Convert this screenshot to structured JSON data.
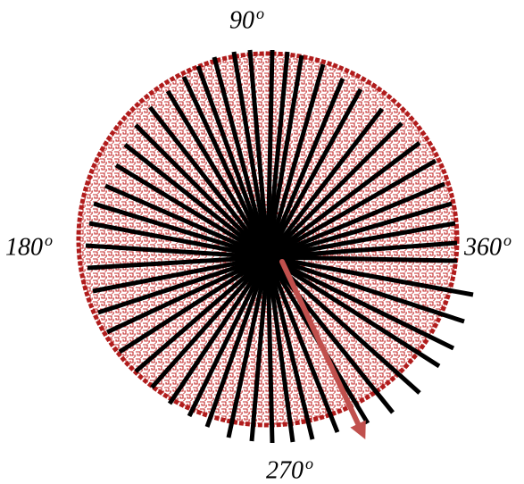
{
  "labels": {
    "top": {
      "value": "90",
      "degree": "o"
    },
    "left": {
      "value": "180",
      "degree": "o"
    },
    "right": {
      "value": "360",
      "degree": "o"
    },
    "bottom": {
      "value": "270",
      "degree": "o"
    }
  },
  "colors": {
    "disc_border": "#b01c1c",
    "pattern_stroke": "#c42a2a",
    "ray": "#000000",
    "arrow": "#c0504d"
  }
}
